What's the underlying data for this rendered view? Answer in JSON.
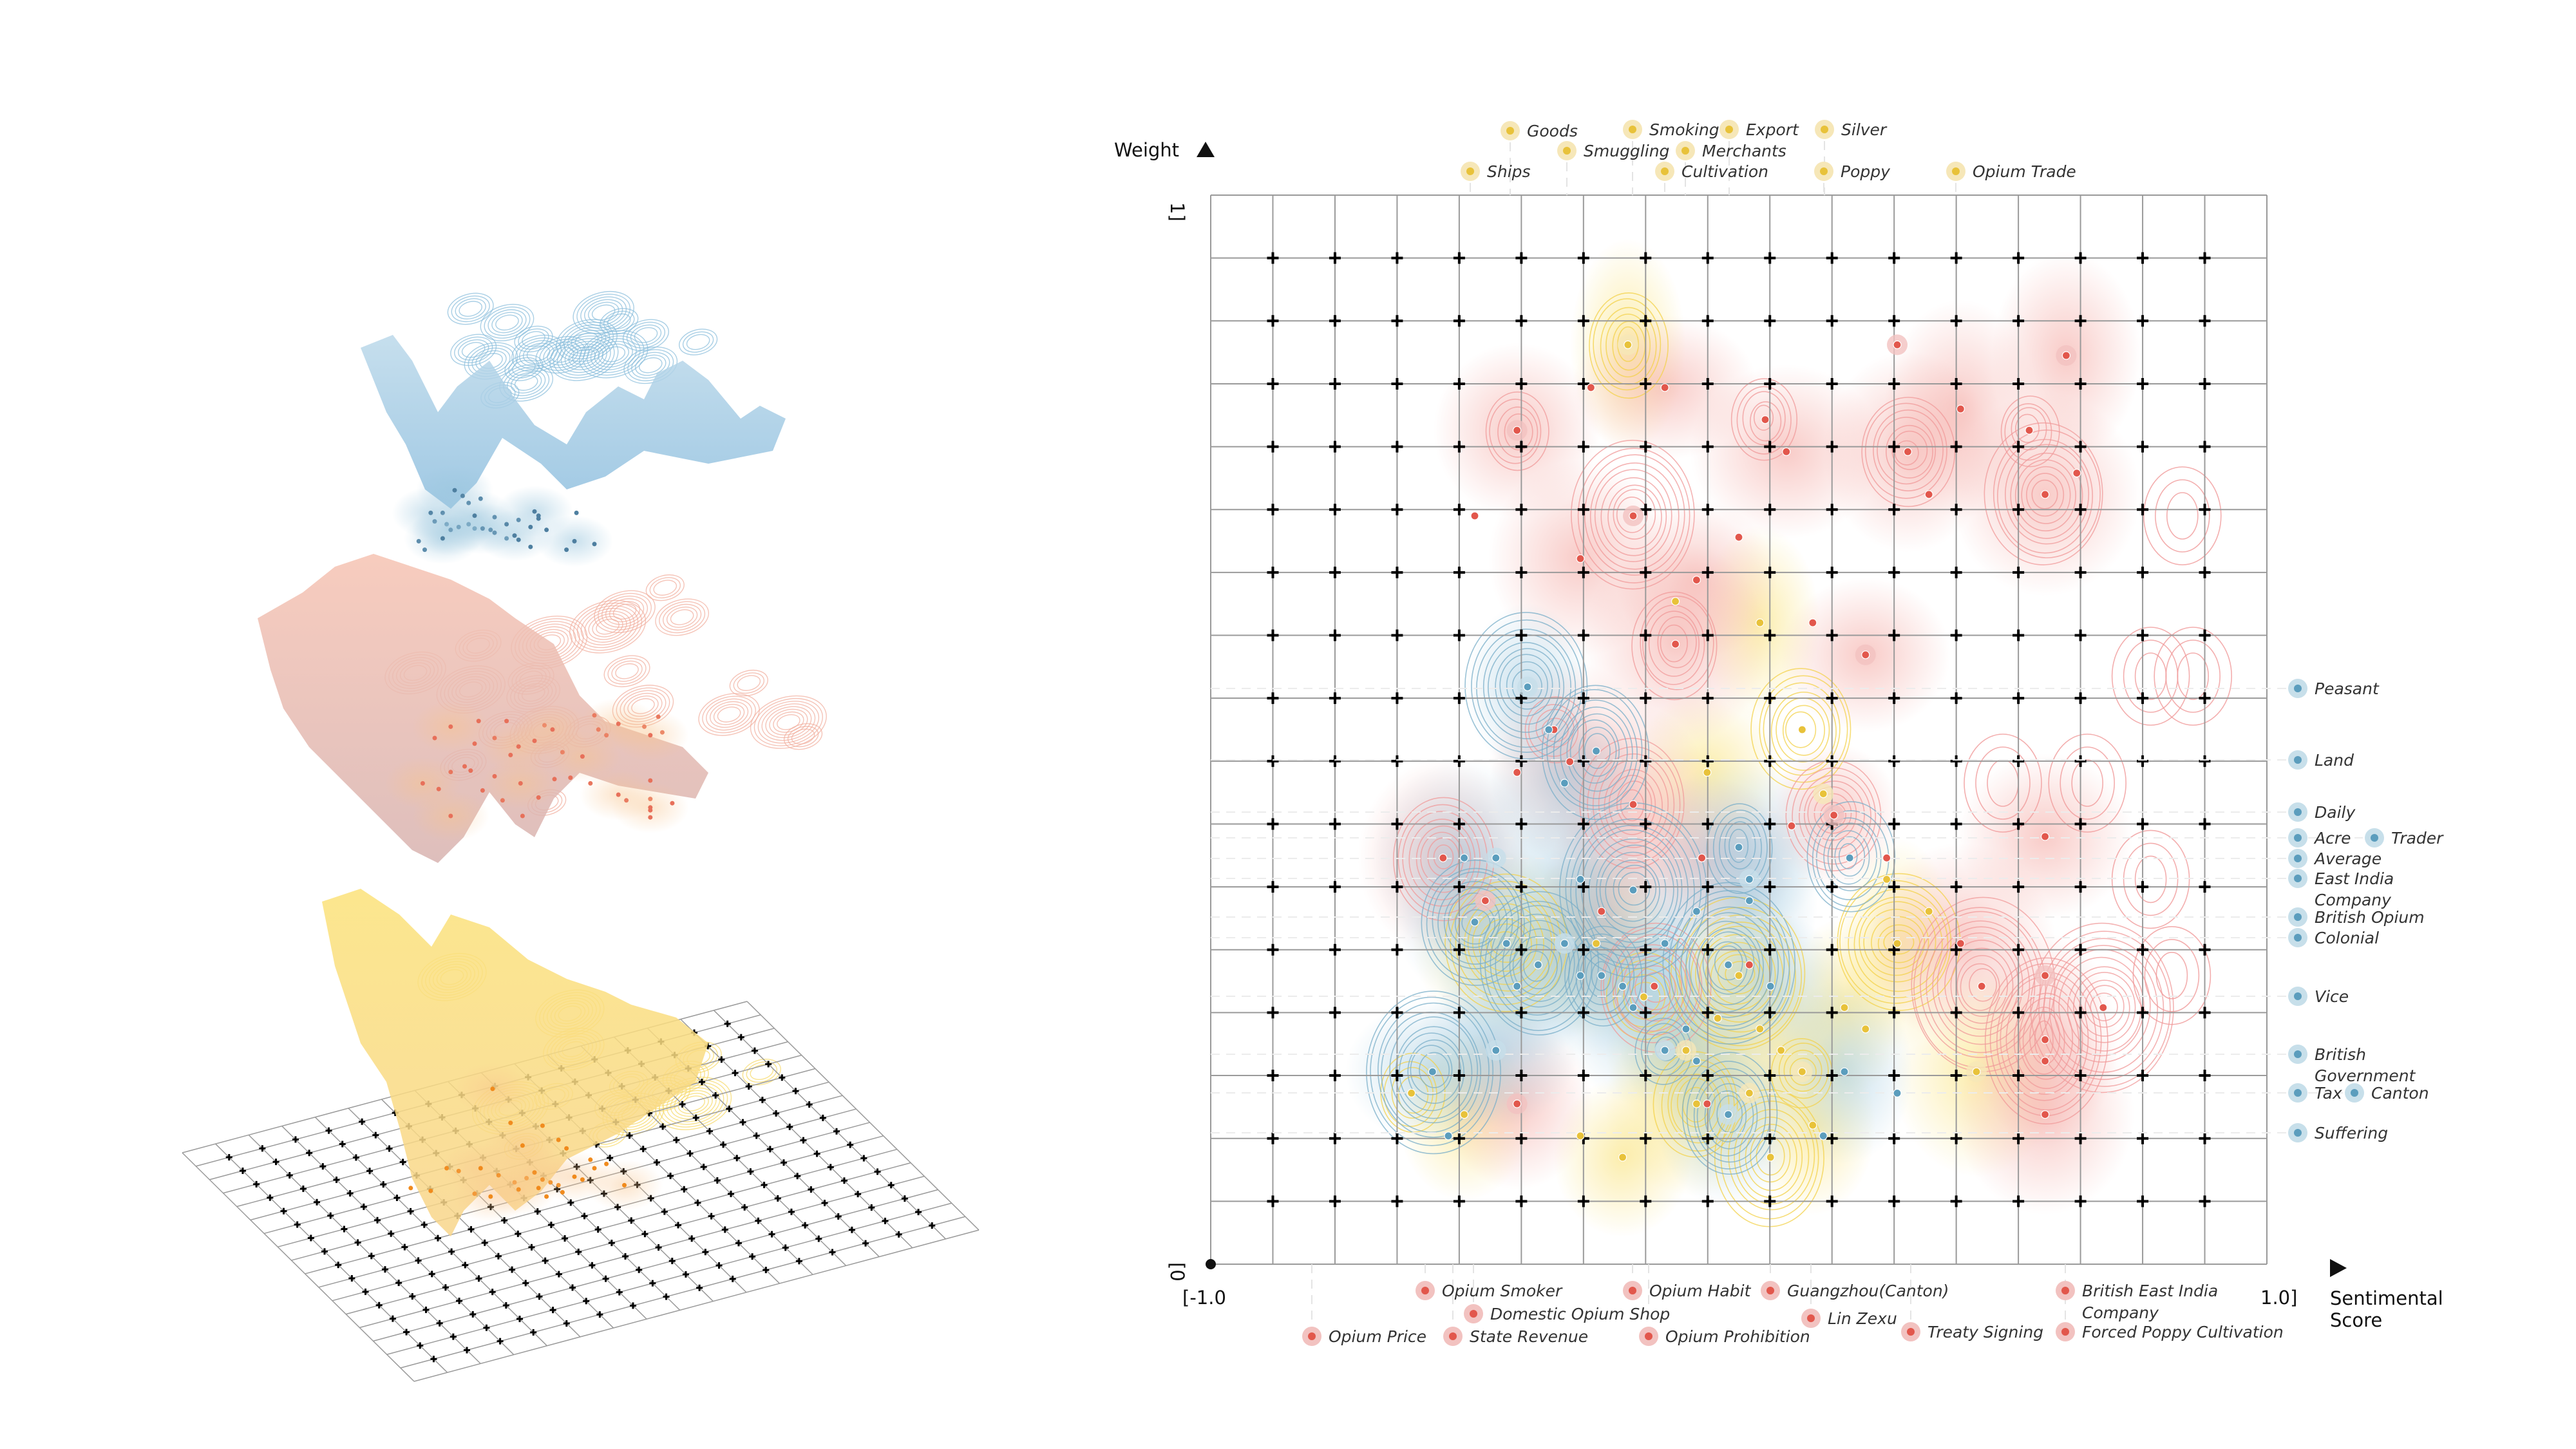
{
  "chart_data": {
    "type": "scatter",
    "title": "",
    "xlabel": "Sentimental Score",
    "ylabel": "Weight",
    "xlim": [
      -1.0,
      1.0
    ],
    "ylim": [
      0,
      1
    ],
    "x_start_label": "[-1.0",
    "x_end_label": "1.0]",
    "y_start_label": "[0",
    "y_end_label": "1]",
    "grid": true,
    "grid_divisions": 17,
    "colors": {
      "yellow": "#e8c23a",
      "yellow_halo": "#f6e7b8",
      "red": "#e2574c",
      "red_halo": "#f2c2c0",
      "blue": "#5b9dbd",
      "blue_halo": "#c7dfea",
      "red_contour": "#f09a9a",
      "yellow_contour": "#f3d24a",
      "blue_contour": "#78aec8",
      "grid": "#9a9a9a",
      "ink": "#111111"
    },
    "legend_top": {
      "group": "yellow",
      "items": [
        {
          "label": "Goods",
          "x": -0.46
        },
        {
          "label": "Smoking",
          "x": -0.24
        },
        {
          "label": "Export",
          "x": -0.08
        },
        {
          "label": "Silver",
          "x": 0.1
        },
        {
          "label": "Smuggling",
          "x": -0.33
        },
        {
          "label": "Merchants",
          "x": -0.11
        },
        {
          "label": "Ships",
          "x": -0.51
        },
        {
          "label": "Cultivation",
          "x": -0.15
        },
        {
          "label": "Poppy",
          "x": 0.1
        },
        {
          "label": "Opium Trade",
          "x": 0.33
        }
      ]
    },
    "legend_right": {
      "group": "blue",
      "items": [
        {
          "label": "Peasant",
          "y": 0.53
        },
        {
          "label": "Land",
          "y": 0.47
        },
        {
          "label": "Daily",
          "y": 0.42
        },
        {
          "label": "Acre",
          "y": 0.4
        },
        {
          "label": "Trader",
          "y": 0.4
        },
        {
          "label": "Average",
          "y": 0.38
        },
        {
          "label": "East India",
          "y": 0.36
        },
        {
          "label": "Company",
          "y": 0.36
        },
        {
          "label": "British Opium",
          "y": 0.325
        },
        {
          "label": "Colonial",
          "y": 0.305
        },
        {
          "label": "Vice",
          "y": 0.25
        },
        {
          "label": "British",
          "y": 0.195
        },
        {
          "label": "Government",
          "y": 0.195
        },
        {
          "label": "Tax",
          "y": 0.16
        },
        {
          "label": "Canton",
          "y": 0.16
        },
        {
          "label": "Suffering",
          "y": 0.12
        }
      ]
    },
    "legend_bottom": {
      "group": "red",
      "items": [
        {
          "label": "Opium Smoker",
          "x": -0.6
        },
        {
          "label": "Opium Habit",
          "x": -0.22
        },
        {
          "label": "Guangzhou(Canton)",
          "x": -0.02
        },
        {
          "label": "Domestic Opium Shop",
          "x": -0.56
        },
        {
          "label": "Lin Zexu",
          "x": 0.07
        },
        {
          "label": "British East India",
          "x": 0.59
        },
        {
          "label": "Company",
          "x": 0.59
        },
        {
          "label": "Opium Price",
          "x": -0.83
        },
        {
          "label": "State Revenue",
          "x": -0.58
        },
        {
          "label": "Opium Prohibition",
          "x": -0.19
        },
        {
          "label": "Treaty Signing",
          "x": 0.25
        },
        {
          "label": "Forced Poppy Cultivation",
          "x": 0.59
        }
      ]
    },
    "series": [
      {
        "name": "yellow",
        "points": [
          [
            -0.21,
            0.86
          ],
          [
            -0.12,
            0.62
          ],
          [
            0.04,
            0.6
          ],
          [
            0.12,
            0.5
          ],
          [
            -0.06,
            0.46
          ],
          [
            0.16,
            0.44
          ],
          [
            -0.44,
            0.3
          ],
          [
            -0.38,
            0.28
          ],
          [
            -0.27,
            0.3
          ],
          [
            -0.18,
            0.25
          ],
          [
            -0.1,
            0.2
          ],
          [
            -0.04,
            0.23
          ],
          [
            0.0,
            0.27
          ],
          [
            0.04,
            0.22
          ],
          [
            0.08,
            0.2
          ],
          [
            0.12,
            0.18
          ],
          [
            0.2,
            0.24
          ],
          [
            0.24,
            0.22
          ],
          [
            0.3,
            0.3
          ],
          [
            0.36,
            0.33
          ],
          [
            0.45,
            0.18
          ],
          [
            -0.62,
            0.16
          ],
          [
            -0.52,
            0.14
          ],
          [
            -0.3,
            0.12
          ],
          [
            -0.08,
            0.15
          ],
          [
            0.02,
            0.16
          ],
          [
            0.14,
            0.13
          ],
          [
            0.06,
            0.1
          ],
          [
            -0.22,
            0.1
          ],
          [
            0.28,
            0.36
          ]
        ]
      },
      {
        "name": "red",
        "points": [
          [
            -0.42,
            0.78
          ],
          [
            -0.28,
            0.82
          ],
          [
            -0.14,
            0.82
          ],
          [
            0.05,
            0.79
          ],
          [
            0.09,
            0.76
          ],
          [
            0.3,
            0.86
          ],
          [
            0.32,
            0.76
          ],
          [
            0.36,
            0.72
          ],
          [
            0.42,
            0.8
          ],
          [
            0.55,
            0.78
          ],
          [
            0.62,
            0.85
          ],
          [
            0.64,
            0.74
          ],
          [
            0.58,
            0.72
          ],
          [
            -0.5,
            0.7
          ],
          [
            -0.3,
            0.66
          ],
          [
            -0.2,
            0.7
          ],
          [
            -0.08,
            0.64
          ],
          [
            0.0,
            0.68
          ],
          [
            -0.12,
            0.58
          ],
          [
            0.14,
            0.6
          ],
          [
            0.24,
            0.57
          ],
          [
            -0.35,
            0.5
          ],
          [
            -0.32,
            0.47
          ],
          [
            -0.42,
            0.46
          ],
          [
            -0.56,
            0.38
          ],
          [
            -0.48,
            0.34
          ],
          [
            -0.26,
            0.33
          ],
          [
            -0.16,
            0.26
          ],
          [
            -0.07,
            0.38
          ],
          [
            0.02,
            0.28
          ],
          [
            0.18,
            0.42
          ],
          [
            0.28,
            0.38
          ],
          [
            0.42,
            0.3
          ],
          [
            0.46,
            0.26
          ],
          [
            0.58,
            0.4
          ],
          [
            0.58,
            0.27
          ],
          [
            0.58,
            0.21
          ],
          [
            0.58,
            0.19
          ],
          [
            0.58,
            0.14
          ],
          [
            0.69,
            0.24
          ],
          [
            -0.42,
            0.15
          ],
          [
            -0.06,
            0.15
          ],
          [
            -0.2,
            0.43
          ],
          [
            0.1,
            0.41
          ]
        ]
      },
      {
        "name": "blue",
        "points": [
          [
            -0.4,
            0.54
          ],
          [
            -0.36,
            0.5
          ],
          [
            -0.33,
            0.45
          ],
          [
            -0.27,
            0.48
          ],
          [
            -0.52,
            0.38
          ],
          [
            -0.46,
            0.38
          ],
          [
            -0.5,
            0.32
          ],
          [
            -0.44,
            0.3
          ],
          [
            -0.42,
            0.26
          ],
          [
            -0.38,
            0.28
          ],
          [
            -0.33,
            0.3
          ],
          [
            -0.3,
            0.27
          ],
          [
            -0.26,
            0.27
          ],
          [
            -0.22,
            0.26
          ],
          [
            -0.2,
            0.24
          ],
          [
            -0.14,
            0.2
          ],
          [
            -0.1,
            0.22
          ],
          [
            -0.08,
            0.19
          ],
          [
            -0.58,
            0.18
          ],
          [
            -0.55,
            0.12
          ],
          [
            -0.46,
            0.2
          ],
          [
            -0.2,
            0.35
          ],
          [
            -0.14,
            0.3
          ],
          [
            -0.08,
            0.33
          ],
          [
            0.0,
            0.39
          ],
          [
            0.02,
            0.36
          ],
          [
            0.02,
            0.34
          ],
          [
            0.21,
            0.38
          ],
          [
            0.2,
            0.18
          ],
          [
            0.3,
            0.16
          ],
          [
            -0.02,
            0.14
          ],
          [
            0.16,
            0.12
          ],
          [
            -0.3,
            0.36
          ],
          [
            -0.02,
            0.28
          ],
          [
            0.06,
            0.26
          ]
        ]
      }
    ],
    "inset_3d": {
      "description_layers": [
        "blue",
        "red",
        "yellow"
      ],
      "grid_divisions": 17
    }
  }
}
